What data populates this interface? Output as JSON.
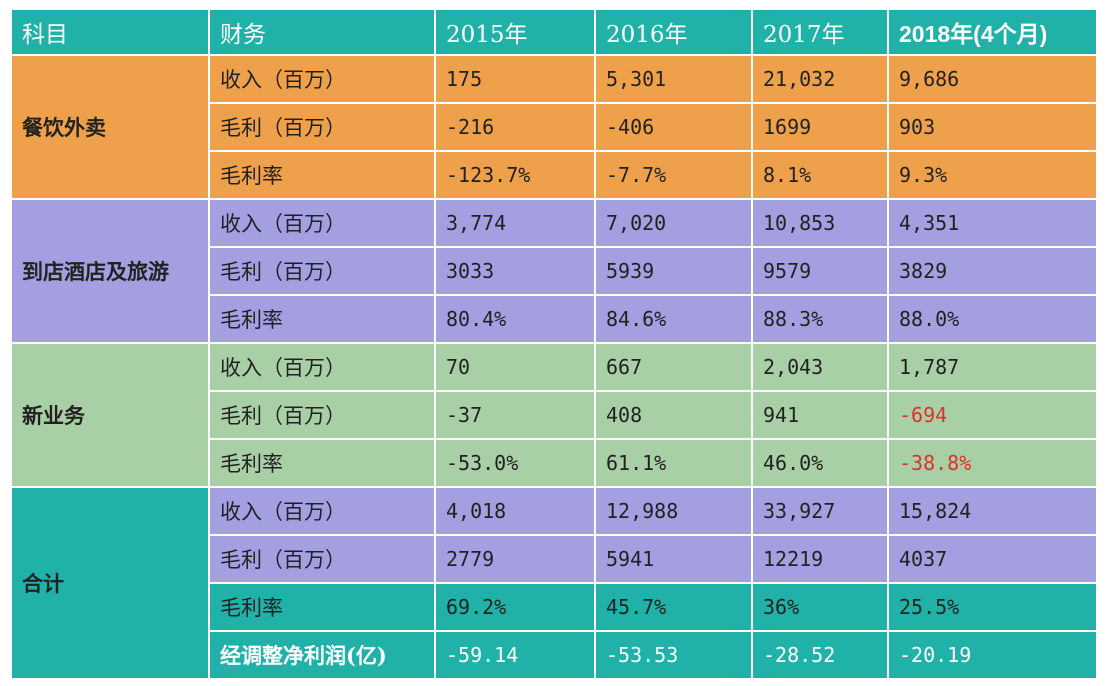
{
  "header": [
    "科目",
    "财务",
    "2015年",
    "2016年",
    "2017年",
    "2018年(4个月)"
  ],
  "groups": [
    {
      "name": "餐饮外卖",
      "rows": [
        {
          "label": "收入（百万）",
          "values": [
            "175",
            "5,301",
            "21,032",
            "9,686"
          ]
        },
        {
          "label": "毛利（百万）",
          "values": [
            "-216",
            "-406",
            "1699",
            "903"
          ]
        },
        {
          "label": "毛利率",
          "values": [
            "-123.7%",
            "-7.7%",
            "8.1%",
            "9.3%"
          ]
        }
      ]
    },
    {
      "name": "到店酒店及旅游",
      "rows": [
        {
          "label": "收入（百万）",
          "values": [
            "3,774",
            "7,020",
            "10,853",
            "4,351"
          ]
        },
        {
          "label": "毛利（百万）",
          "values": [
            "3033",
            "5939",
            "9579",
            "3829"
          ]
        },
        {
          "label": "毛利率",
          "values": [
            "80.4%",
            "84.6%",
            "88.3%",
            "88.0%"
          ]
        }
      ]
    },
    {
      "name": "新业务",
      "rows": [
        {
          "label": "收入（百万）",
          "values": [
            "70",
            "667",
            "2,043",
            "1,787"
          ]
        },
        {
          "label": "毛利（百万）",
          "values": [
            "-37",
            "408",
            "941",
            "-694"
          ]
        },
        {
          "label": "毛利率",
          "values": [
            "-53.0%",
            "61.1%",
            "46.0%",
            "-38.8%"
          ]
        }
      ]
    },
    {
      "name": "合计",
      "rows": [
        {
          "label": "收入（百万）",
          "values": [
            "4,018",
            "12,988",
            "33,927",
            "15,824"
          ]
        },
        {
          "label": "毛利（百万）",
          "values": [
            "2779",
            "5941",
            "12219",
            "4037"
          ]
        },
        {
          "label": "毛利率",
          "values": [
            "69.2%",
            "45.7%",
            "36%",
            "25.5%"
          ]
        },
        {
          "label": "经调整净利润(亿)",
          "values": [
            "-59.14",
            "-53.53",
            "-28.52",
            "-20.19"
          ]
        }
      ]
    }
  ],
  "colors": {
    "header": "#20b2a8",
    "food_delivery": "#eea14a",
    "hotel_travel": "#a39fe0",
    "new_business": "#a8cfa6",
    "total_primary": "#a39fe0",
    "total_highlight": "#20b2a8",
    "negative_highlight": "#e0302a"
  }
}
